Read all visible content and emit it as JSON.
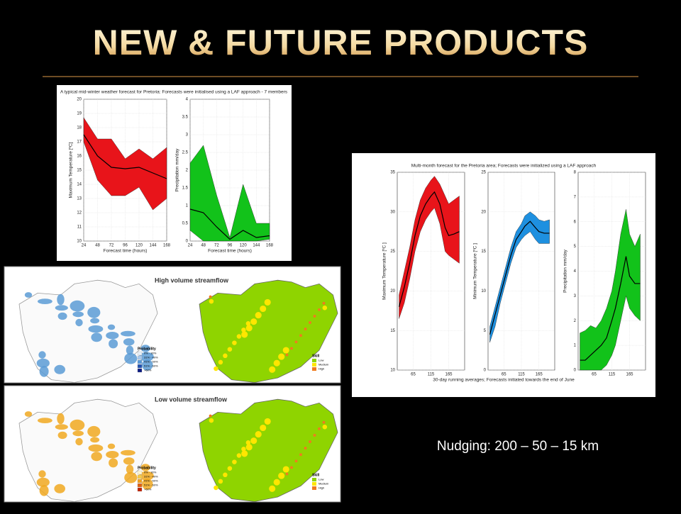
{
  "slide": {
    "title": "NEW & FUTURE PRODUCTS",
    "caption": "Nudging: 200 – 50 – 15 km"
  },
  "maps": [
    {
      "title": "High volume streamflow",
      "legend_title": "Probability",
      "legend": [
        "0% - 30%",
        "31% - 40%",
        "41% - 50%",
        "51% - 60%",
        ">60%"
      ],
      "legend_colors": [
        "#e8f0f8",
        "#a8c8ec",
        "#5a9ad8",
        "#2050b0",
        "#0a1a80"
      ],
      "color": "#5b9bd5",
      "skill_title": "Skill",
      "skill": [
        "Low",
        "Medium",
        "High"
      ],
      "skill_colors": [
        "#8fd400",
        "#ffe600",
        "#f07b1d"
      ]
    },
    {
      "title": "Low volume streamflow",
      "legend_title": "Probability",
      "legend": [
        "0% - 30%",
        "31% - 40%",
        "41% - 50%",
        "51% - 60%",
        ">60%"
      ],
      "legend_colors": [
        "#fff6d0",
        "#f7c948",
        "#f0a020",
        "#e06010",
        "#c02000"
      ],
      "color": "#f0a820",
      "skill_title": "Skill",
      "skill": [
        "Low",
        "Medium",
        "High"
      ],
      "skill_colors": [
        "#8fd400",
        "#ffe600",
        "#f07b1d"
      ]
    }
  ],
  "chart_data": [
    {
      "type": "band",
      "title": "A typical mid-winter weather forecast for Pretoria: Forecasts were initialised using a LAF approach - 7 members",
      "xlabel": "Forecast time (hours)",
      "ylabel": "Maximum Temperature [ºC]",
      "x": [
        24,
        48,
        72,
        96,
        120,
        144,
        168
      ],
      "xlim": [
        24,
        168
      ],
      "xticks": [
        24,
        48,
        72,
        96,
        120,
        144,
        168
      ],
      "ylim": [
        10,
        20
      ],
      "yticks": [
        10,
        11,
        12,
        13,
        14,
        15,
        16,
        17,
        18,
        19,
        20
      ],
      "color": "#e8141a",
      "values": [
        17.5,
        16,
        15.2,
        15.1,
        15.2,
        14.8,
        14.4
      ],
      "lower": [
        17,
        14.3,
        13.2,
        13.2,
        13.8,
        12.2,
        13
      ],
      "upper": [
        18.7,
        17.2,
        17.2,
        15.8,
        16.5,
        15.8,
        16.6
      ]
    },
    {
      "type": "band",
      "xlabel": "Forecast time (hours)",
      "ylabel": "Precipitation mm/day",
      "x": [
        24,
        48,
        72,
        96,
        120,
        144,
        168
      ],
      "xlim": [
        24,
        168
      ],
      "xticks": [
        24,
        48,
        72,
        96,
        120,
        144,
        168
      ],
      "ylim": [
        0,
        4
      ],
      "yticks": [
        0,
        0.5,
        1,
        1.5,
        2,
        2.5,
        3,
        3.5,
        4
      ],
      "color": "#12c21a",
      "values": [
        0.9,
        0.8,
        0.4,
        0.05,
        0.3,
        0.1,
        0.15
      ],
      "lower": [
        0.3,
        0,
        0,
        0,
        0,
        0,
        0.05
      ],
      "upper": [
        2.2,
        2.7,
        1.3,
        0.1,
        1.6,
        0.5,
        0.5
      ]
    },
    {
      "type": "band",
      "title": "Multi-month forecast for the Pretoria area; Forecasts were initialized using a LAF approach",
      "ylabel": "Maximum Temperature [ºC ]",
      "x": [
        25,
        40,
        55,
        70,
        85,
        100,
        115,
        125,
        140,
        155,
        165,
        180,
        195
      ],
      "xlim": [
        20,
        210
      ],
      "xticks": [
        65,
        115,
        165
      ],
      "ylim": [
        10,
        35
      ],
      "yticks": [
        10,
        15,
        20,
        25,
        30,
        35
      ],
      "color": "#e8141a",
      "values": [
        18,
        20.5,
        23.5,
        27,
        29.5,
        31,
        32,
        32.5,
        31,
        28,
        27,
        27.2,
        27.5
      ],
      "lower": [
        16.5,
        18.5,
        21.5,
        25,
        27.5,
        29,
        30,
        30.5,
        28.5,
        25,
        24.5,
        24,
        23.5
      ],
      "upper": [
        19.5,
        22.5,
        25.5,
        29,
        31.5,
        33,
        34,
        34.5,
        33.5,
        32,
        31,
        31.5,
        32
      ]
    },
    {
      "type": "band",
      "xlabel": "30-day running averages; Forecasts initiated towards the end of June",
      "ylabel": "Minimum Temperature [ºC ]",
      "x": [
        25,
        40,
        55,
        70,
        85,
        100,
        115,
        125,
        140,
        155,
        165,
        180,
        195
      ],
      "xlim": [
        20,
        210
      ],
      "xticks": [
        65,
        115,
        165
      ],
      "ylim": [
        0,
        25
      ],
      "yticks": [
        0,
        5,
        10,
        15,
        20,
        25
      ],
      "color": "#1e90e0",
      "values": [
        4.5,
        7,
        9.5,
        12,
        14.5,
        16.5,
        17.5,
        18.2,
        18.8,
        18,
        17.5,
        17.3,
        17.3
      ],
      "lower": [
        3.5,
        5.5,
        8.5,
        11,
        13.5,
        15.5,
        16.5,
        17,
        17.5,
        16.5,
        16,
        16,
        16
      ],
      "upper": [
        5.5,
        8,
        10.5,
        13,
        15.5,
        17.5,
        18.5,
        19.5,
        20,
        19.5,
        19,
        18.8,
        19
      ]
    },
    {
      "type": "band",
      "ylabel": "Precipitation mm/day",
      "x": [
        25,
        40,
        55,
        70,
        85,
        100,
        115,
        125,
        140,
        155,
        165,
        180,
        195
      ],
      "xlim": [
        20,
        210
      ],
      "xticks": [
        65,
        115,
        165
      ],
      "ylim": [
        0,
        8
      ],
      "yticks": [
        0,
        1,
        2,
        3,
        4,
        5,
        6,
        7,
        8
      ],
      "color": "#12c21a",
      "values": [
        0.4,
        0.4,
        0.6,
        0.8,
        1,
        1.3,
        2,
        2.5,
        3.5,
        4.6,
        3.8,
        3.5,
        3.5
      ],
      "lower": [
        0,
        0,
        0,
        0,
        0,
        0.2,
        0.6,
        1,
        2,
        3,
        2.5,
        2.2,
        2
      ],
      "upper": [
        1.5,
        1.6,
        1.8,
        1.7,
        2,
        2.5,
        3.2,
        4,
        5.5,
        6.5,
        5.5,
        5,
        5.5
      ]
    }
  ]
}
